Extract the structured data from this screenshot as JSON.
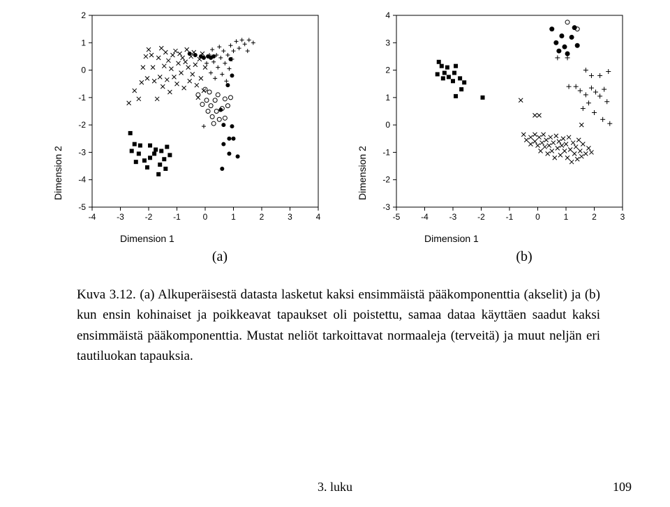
{
  "chartA": {
    "type": "scatter",
    "xlabel": "Dimension 1",
    "ylabel": "Dimension 2",
    "xlim": [
      -4,
      4
    ],
    "xtick_step": 1,
    "ylim": [
      -5,
      2
    ],
    "ytick_step": 1,
    "background_color": "#ffffff",
    "axis_color": "#000000",
    "label_fontsize": 14,
    "tick_fontsize": 12,
    "series": [
      {
        "marker": "filled-square",
        "color": "#000000",
        "size": 6,
        "points": [
          [
            -2.65,
            -2.3
          ],
          [
            -2.5,
            -2.7
          ],
          [
            -2.6,
            -2.95
          ],
          [
            -2.3,
            -2.75
          ],
          [
            -2.35,
            -3.05
          ],
          [
            -2.45,
            -3.35
          ],
          [
            -2.15,
            -3.3
          ],
          [
            -2.05,
            -3.55
          ],
          [
            -1.95,
            -3.2
          ],
          [
            -1.8,
            -3.05
          ],
          [
            -1.75,
            -2.9
          ],
          [
            -1.6,
            -3.45
          ],
          [
            -1.45,
            -3.25
          ],
          [
            -1.55,
            -2.95
          ],
          [
            -1.35,
            -2.8
          ],
          [
            -1.4,
            -3.6
          ],
          [
            -1.65,
            -3.8
          ],
          [
            -1.95,
            -2.75
          ],
          [
            -1.25,
            -3.1
          ]
        ]
      },
      {
        "marker": "x",
        "color": "#000000",
        "size": 6,
        "points": [
          [
            -2.7,
            -1.2
          ],
          [
            -2.5,
            -0.75
          ],
          [
            -2.35,
            -1.05
          ],
          [
            -2.25,
            -0.45
          ],
          [
            -2.2,
            0.1
          ],
          [
            -2.1,
            0.5
          ],
          [
            -2.05,
            -0.3
          ],
          [
            -2.0,
            0.75
          ],
          [
            -1.9,
            0.55
          ],
          [
            -1.85,
            0.1
          ],
          [
            -1.8,
            -0.4
          ],
          [
            -1.7,
            -1.05
          ],
          [
            -1.65,
            0.45
          ],
          [
            -1.6,
            -0.25
          ],
          [
            -1.55,
            0.8
          ],
          [
            -1.5,
            -0.6
          ],
          [
            -1.45,
            0.15
          ],
          [
            -1.4,
            0.65
          ],
          [
            -1.35,
            -0.35
          ],
          [
            -1.3,
            0.35
          ],
          [
            -1.25,
            -0.8
          ],
          [
            -1.2,
            0.05
          ],
          [
            -1.15,
            0.55
          ],
          [
            -1.1,
            -0.25
          ],
          [
            -1.05,
            0.7
          ],
          [
            -1.0,
            -0.5
          ],
          [
            -0.95,
            0.25
          ],
          [
            -0.9,
            0.6
          ],
          [
            -0.85,
            -0.1
          ],
          [
            -0.8,
            0.45
          ],
          [
            -0.75,
            -0.65
          ],
          [
            -0.7,
            0.3
          ],
          [
            -0.65,
            0.75
          ],
          [
            -0.6,
            0.1
          ],
          [
            -0.55,
            -0.4
          ],
          [
            -0.5,
            0.5
          ],
          [
            -0.45,
            -0.15
          ],
          [
            -0.4,
            0.65
          ],
          [
            -0.35,
            0.2
          ],
          [
            -0.3,
            -0.55
          ],
          [
            -0.25,
            -1.0
          ],
          [
            -0.2,
            0.4
          ],
          [
            -0.15,
            -0.3
          ],
          [
            -0.1,
            0.6
          ],
          [
            -0.05,
            -0.75
          ],
          [
            0.0,
            0.1
          ]
        ]
      },
      {
        "marker": "open-circle",
        "color": "#000000",
        "size": 6,
        "points": [
          [
            -0.25,
            -0.9
          ],
          [
            -0.1,
            -1.25
          ],
          [
            0.0,
            -0.7
          ],
          [
            0.05,
            -1.1
          ],
          [
            0.1,
            -1.5
          ],
          [
            0.15,
            -0.8
          ],
          [
            0.2,
            -1.3
          ],
          [
            0.25,
            -1.7
          ],
          [
            0.3,
            -1.95
          ],
          [
            0.35,
            -1.1
          ],
          [
            0.4,
            -1.5
          ],
          [
            0.45,
            -0.9
          ],
          [
            0.5,
            -1.8
          ],
          [
            0.6,
            -1.4
          ],
          [
            0.7,
            -1.05
          ],
          [
            0.7,
            -1.75
          ],
          [
            0.8,
            -1.3
          ],
          [
            0.9,
            -1.0
          ]
        ]
      },
      {
        "marker": "plus",
        "color": "#000000",
        "size": 6,
        "points": [
          [
            0.05,
            0.25
          ],
          [
            0.15,
            0.55
          ],
          [
            0.2,
            -0.1
          ],
          [
            0.25,
            0.75
          ],
          [
            0.3,
            0.3
          ],
          [
            0.35,
            -0.3
          ],
          [
            0.4,
            0.55
          ],
          [
            0.45,
            0.1
          ],
          [
            0.5,
            0.85
          ],
          [
            0.55,
            0.45
          ],
          [
            0.6,
            -0.15
          ],
          [
            0.65,
            0.7
          ],
          [
            0.7,
            0.25
          ],
          [
            0.75,
            -0.4
          ],
          [
            0.8,
            0.55
          ],
          [
            0.85,
            0.05
          ],
          [
            0.9,
            0.9
          ],
          [
            0.95,
            0.4
          ],
          [
            1.0,
            0.7
          ],
          [
            1.1,
            1.05
          ],
          [
            1.2,
            0.8
          ],
          [
            1.3,
            1.1
          ],
          [
            1.4,
            0.95
          ],
          [
            1.5,
            0.7
          ],
          [
            1.55,
            1.1
          ],
          [
            1.7,
            1.0
          ],
          [
            -0.05,
            -2.05
          ]
        ]
      },
      {
        "marker": "filled-circle",
        "color": "#000000",
        "size": 6,
        "points": [
          [
            -0.55,
            0.6
          ],
          [
            -0.35,
            0.55
          ],
          [
            -0.15,
            0.5
          ],
          [
            -0.05,
            0.45
          ],
          [
            0.1,
            0.5
          ],
          [
            0.2,
            0.45
          ],
          [
            0.3,
            0.5
          ],
          [
            0.55,
            -1.45
          ],
          [
            0.65,
            -2.0
          ],
          [
            0.85,
            -2.5
          ],
          [
            0.65,
            -2.7
          ],
          [
            0.85,
            -3.05
          ],
          [
            0.95,
            -2.05
          ],
          [
            1.0,
            -2.5
          ],
          [
            1.15,
            -3.15
          ],
          [
            0.6,
            -3.6
          ],
          [
            0.8,
            -0.55
          ],
          [
            0.95,
            -0.2
          ],
          [
            0.9,
            0.4
          ]
        ]
      }
    ]
  },
  "chartB": {
    "type": "scatter",
    "xlabel": "Dimension 1",
    "ylabel": "Dimension 2",
    "xlim": [
      -5,
      3
    ],
    "xtick_step": 1,
    "ylim": [
      -3,
      4
    ],
    "ytick_step": 1,
    "background_color": "#ffffff",
    "axis_color": "#000000",
    "label_fontsize": 14,
    "tick_fontsize": 12,
    "series": [
      {
        "marker": "filled-square",
        "color": "#000000",
        "size": 6,
        "points": [
          [
            -3.4,
            2.15
          ],
          [
            -3.2,
            2.1
          ],
          [
            -3.3,
            1.9
          ],
          [
            -3.55,
            1.85
          ],
          [
            -3.35,
            1.7
          ],
          [
            -3.15,
            1.75
          ],
          [
            -2.95,
            1.9
          ],
          [
            -3.0,
            1.6
          ],
          [
            -2.9,
            2.15
          ],
          [
            -3.5,
            2.3
          ],
          [
            -2.75,
            1.7
          ],
          [
            -2.6,
            1.55
          ],
          [
            -2.7,
            1.3
          ],
          [
            -2.9,
            1.05
          ],
          [
            -1.95,
            1.0
          ]
        ]
      },
      {
        "marker": "filled-circle",
        "color": "#000000",
        "size": 7,
        "points": [
          [
            0.5,
            3.5
          ],
          [
            0.65,
            3.0
          ],
          [
            0.75,
            2.7
          ],
          [
            0.85,
            3.25
          ],
          [
            0.95,
            2.85
          ],
          [
            1.05,
            2.6
          ],
          [
            1.2,
            3.2
          ],
          [
            1.3,
            3.55
          ],
          [
            1.4,
            2.9
          ]
        ]
      },
      {
        "marker": "open-circle",
        "color": "#000000",
        "size": 6,
        "points": [
          [
            1.05,
            3.75
          ],
          [
            1.4,
            3.5
          ]
        ]
      },
      {
        "marker": "plus",
        "color": "#000000",
        "size": 7,
        "points": [
          [
            0.7,
            2.45
          ],
          [
            1.05,
            2.45
          ],
          [
            1.7,
            2.0
          ],
          [
            1.9,
            1.8
          ],
          [
            2.2,
            1.8
          ],
          [
            2.5,
            1.95
          ],
          [
            1.1,
            1.4
          ],
          [
            1.35,
            1.4
          ],
          [
            1.5,
            1.25
          ],
          [
            1.7,
            1.1
          ],
          [
            1.9,
            1.35
          ],
          [
            2.05,
            1.2
          ],
          [
            2.2,
            1.05
          ],
          [
            2.35,
            1.3
          ],
          [
            2.45,
            0.85
          ],
          [
            2.0,
            0.45
          ],
          [
            2.3,
            0.2
          ],
          [
            2.55,
            0.05
          ],
          [
            1.6,
            0.6
          ],
          [
            1.8,
            0.8
          ]
        ]
      },
      {
        "marker": "x",
        "color": "#000000",
        "size": 6,
        "points": [
          [
            -0.6,
            0.9
          ],
          [
            -0.1,
            0.35
          ],
          [
            0.05,
            0.35
          ],
          [
            -0.5,
            -0.35
          ],
          [
            -0.4,
            -0.55
          ],
          [
            -0.25,
            -0.7
          ],
          [
            -0.25,
            -0.45
          ],
          [
            -0.1,
            -0.6
          ],
          [
            -0.1,
            -0.35
          ],
          [
            0.0,
            -0.75
          ],
          [
            0.05,
            -0.45
          ],
          [
            0.1,
            -0.95
          ],
          [
            0.15,
            -0.65
          ],
          [
            0.2,
            -0.35
          ],
          [
            0.25,
            -0.8
          ],
          [
            0.3,
            -0.55
          ],
          [
            0.35,
            -1.05
          ],
          [
            0.4,
            -0.75
          ],
          [
            0.45,
            -0.45
          ],
          [
            0.5,
            -0.95
          ],
          [
            0.55,
            -0.65
          ],
          [
            0.6,
            -1.2
          ],
          [
            0.65,
            -0.4
          ],
          [
            0.7,
            -0.85
          ],
          [
            0.75,
            -0.6
          ],
          [
            0.8,
            -1.1
          ],
          [
            0.85,
            -0.75
          ],
          [
            0.9,
            -0.5
          ],
          [
            0.95,
            -0.95
          ],
          [
            1.0,
            -0.7
          ],
          [
            1.05,
            -1.2
          ],
          [
            1.1,
            -0.45
          ],
          [
            1.15,
            -0.9
          ],
          [
            1.2,
            -1.35
          ],
          [
            1.25,
            -0.65
          ],
          [
            1.3,
            -1.05
          ],
          [
            1.35,
            -0.8
          ],
          [
            1.4,
            -1.25
          ],
          [
            1.45,
            -0.55
          ],
          [
            1.5,
            -0.95
          ],
          [
            1.55,
            -1.15
          ],
          [
            1.6,
            -0.7
          ],
          [
            1.7,
            -1.05
          ],
          [
            1.8,
            -0.85
          ],
          [
            1.9,
            -1.0
          ],
          [
            1.55,
            0.0
          ]
        ]
      }
    ]
  },
  "subcaptions": {
    "a": "(a)",
    "b": "(b)"
  },
  "caption": "Kuva 3.12. (a) Alkuperäisestä datasta lasketut kaksi ensimmäistä pääkomponenttia (akselit) ja (b) kun ensin kohinaiset ja poikkeavat tapaukset oli poistettu, samaa dataa käyttäen saadut kaksi ensimmäistä pääkomponenttia. Mustat neliöt tarkoittavat normaaleja (terveitä) ja muut neljän eri tautiluokan tapauksia.",
  "footer_center": "3. luku",
  "page_number": "109"
}
